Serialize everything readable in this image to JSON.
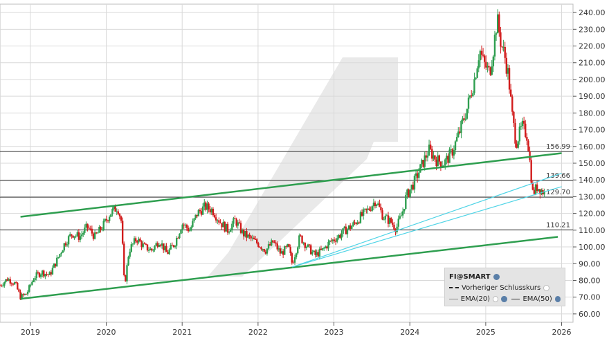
{
  "chart_data": {
    "type": "candlestick",
    "instrument": "FI@SMART",
    "x_ticks": [
      "2019",
      "2020",
      "2021",
      "2022",
      "2023",
      "2024",
      "2025",
      "2026"
    ],
    "xlim": [
      2018.6,
      2026.15
    ],
    "ylim": [
      55,
      245
    ],
    "y_ticks": [
      "60.00",
      "70.00",
      "80.00",
      "90.00",
      "100.00",
      "110.00",
      "120.00",
      "130.00",
      "140.00",
      "150.00",
      "160.00",
      "170.00",
      "180.00",
      "190.00",
      "200.00",
      "210.00",
      "220.00",
      "230.00",
      "240.00"
    ],
    "price_path": [
      [
        2018.6,
        77
      ],
      [
        2018.7,
        81
      ],
      [
        2018.8,
        78
      ],
      [
        2018.87,
        70
      ],
      [
        2018.95,
        72
      ],
      [
        2019.05,
        82
      ],
      [
        2019.15,
        85
      ],
      [
        2019.25,
        83
      ],
      [
        2019.35,
        92
      ],
      [
        2019.45,
        102
      ],
      [
        2019.55,
        108
      ],
      [
        2019.65,
        106
      ],
      [
        2019.75,
        112
      ],
      [
        2019.85,
        106
      ],
      [
        2019.95,
        112
      ],
      [
        2020.05,
        120
      ],
      [
        2020.15,
        124
      ],
      [
        2020.2,
        115
      ],
      [
        2020.24,
        76
      ],
      [
        2020.3,
        98
      ],
      [
        2020.4,
        105
      ],
      [
        2020.5,
        100
      ],
      [
        2020.6,
        98
      ],
      [
        2020.7,
        104
      ],
      [
        2020.8,
        96
      ],
      [
        2020.9,
        102
      ],
      [
        2021.0,
        114
      ],
      [
        2021.1,
        110
      ],
      [
        2021.2,
        120
      ],
      [
        2021.3,
        124
      ],
      [
        2021.4,
        122
      ],
      [
        2021.5,
        115
      ],
      [
        2021.6,
        110
      ],
      [
        2021.7,
        116
      ],
      [
        2021.8,
        108
      ],
      [
        2021.9,
        105
      ],
      [
        2022.0,
        102
      ],
      [
        2022.1,
        98
      ],
      [
        2022.2,
        103
      ],
      [
        2022.3,
        96
      ],
      [
        2022.4,
        100
      ],
      [
        2022.45,
        90
      ],
      [
        2022.55,
        106
      ],
      [
        2022.65,
        100
      ],
      [
        2022.75,
        95
      ],
      [
        2022.85,
        98
      ],
      [
        2022.95,
        103
      ],
      [
        2023.05,
        106
      ],
      [
        2023.15,
        110
      ],
      [
        2023.25,
        113
      ],
      [
        2023.35,
        118
      ],
      [
        2023.45,
        122
      ],
      [
        2023.55,
        128
      ],
      [
        2023.65,
        118
      ],
      [
        2023.75,
        115
      ],
      [
        2023.82,
        111
      ],
      [
        2023.9,
        120
      ],
      [
        2023.95,
        130
      ],
      [
        2024.05,
        138
      ],
      [
        2024.15,
        148
      ],
      [
        2024.25,
        158
      ],
      [
        2024.35,
        152
      ],
      [
        2024.45,
        150
      ],
      [
        2024.55,
        156
      ],
      [
        2024.65,
        168
      ],
      [
        2024.75,
        182
      ],
      [
        2024.85,
        200
      ],
      [
        2024.92,
        218
      ],
      [
        2024.97,
        210
      ],
      [
        2025.05,
        204
      ],
      [
        2025.1,
        218
      ],
      [
        2025.15,
        236
      ],
      [
        2025.2,
        222
      ],
      [
        2025.25,
        214
      ],
      [
        2025.3,
        202
      ],
      [
        2025.35,
        178
      ],
      [
        2025.4,
        162
      ],
      [
        2025.48,
        172
      ],
      [
        2025.55,
        166
      ],
      [
        2025.62,
        132
      ],
      [
        2025.68,
        136
      ],
      [
        2025.73,
        134
      ],
      [
        2025.78,
        132
      ]
    ],
    "trend_lines": [
      {
        "color": "#2e9e4f",
        "from": [
          2018.87,
          118
        ],
        "to": [
          2026.0,
          156
        ]
      },
      {
        "color": "#2e9e4f",
        "from": [
          2018.87,
          69
        ],
        "to": [
          2025.95,
          106
        ]
      },
      {
        "color": "#4fd4e6",
        "from": [
          2022.45,
          88
        ],
        "to": [
          2026.0,
          144
        ]
      },
      {
        "color": "#4fd4e6",
        "from": [
          2022.45,
          88
        ],
        "to": [
          2026.0,
          136
        ]
      }
    ],
    "horizontal_levels": [
      {
        "label": "156.99",
        "value": 156.99
      },
      {
        "label": "139.66",
        "value": 139.66
      },
      {
        "label": "129.70",
        "value": 129.7
      },
      {
        "label": "110.21",
        "value": 110.21
      }
    ],
    "legend": {
      "title": "FI@SMART",
      "prev_close": "Vorheriger Schlusskurs",
      "ema20": "EMA(20)",
      "ema50": "EMA(50)"
    },
    "colors": {
      "up": "#2e9e4f",
      "down": "#d11b1b",
      "grid": "#d9d9d9",
      "level": "#333333",
      "watermark": "#e9e9e9"
    }
  }
}
